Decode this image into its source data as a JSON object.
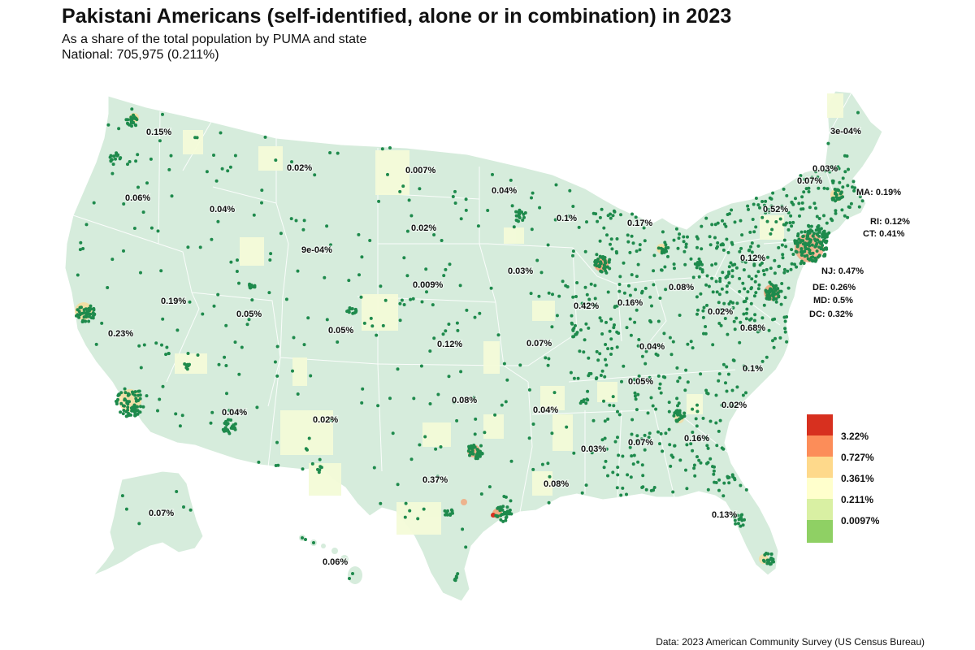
{
  "header": {
    "title": "Pakistani Americans (self-identified, alone or in combination) in 2023",
    "subtitle": "As a share of the total population by PUMA and state",
    "national": "National: 705,975 (0.211%)"
  },
  "source": "Data: 2023 American Community Survey (US Census Bureau)",
  "colors": {
    "state_fill": "#d6ecdc",
    "border": "#ffffff",
    "puma_dot": "#1e8a4c",
    "light_puma": "#f4fbd8"
  },
  "legend": {
    "items": [
      {
        "label": "3.22%",
        "color": "#d7301f"
      },
      {
        "label": "0.727%",
        "color": "#fc8d59"
      },
      {
        "label": "0.361%",
        "color": "#fed98b"
      },
      {
        "label": "0.211%",
        "color": "#ffffcc"
      },
      {
        "label": "0.0097%",
        "color": "#d9f0a3"
      },
      {
        "label": "",
        "color": "#8fd064"
      }
    ]
  },
  "states": [
    {
      "id": "WA",
      "value": "0.15%"
    },
    {
      "id": "OR",
      "value": "0.06%"
    },
    {
      "id": "ID",
      "value": "0.04%"
    },
    {
      "id": "MT",
      "value": "0.02%"
    },
    {
      "id": "ND",
      "value": "0.007%"
    },
    {
      "id": "MN",
      "value": "0.04%"
    },
    {
      "id": "WI",
      "value": "0.1%"
    },
    {
      "id": "MI",
      "value": "0.17%"
    },
    {
      "id": "SD",
      "value": "0.02%"
    },
    {
      "id": "WY",
      "value": "9e-04%"
    },
    {
      "id": "NE",
      "value": "0.009%"
    },
    {
      "id": "IA",
      "value": "0.03%"
    },
    {
      "id": "NV",
      "value": "0.19%"
    },
    {
      "id": "UT",
      "value": "0.05%"
    },
    {
      "id": "CO",
      "value": "0.05%"
    },
    {
      "id": "CA",
      "value": "0.23%"
    },
    {
      "id": "KS",
      "value": "0.12%"
    },
    {
      "id": "MO",
      "value": "0.07%"
    },
    {
      "id": "IL",
      "value": "0.42%"
    },
    {
      "id": "IN",
      "value": "0.16%"
    },
    {
      "id": "OH",
      "value": "0.08%"
    },
    {
      "id": "WV",
      "value": "0.02%"
    },
    {
      "id": "PA",
      "value": "0.12%"
    },
    {
      "id": "NY",
      "value": "0.52%"
    },
    {
      "id": "VT",
      "value": "0.07%"
    },
    {
      "id": "NH",
      "value": "0.03%"
    },
    {
      "id": "ME",
      "value": "3e-04%"
    },
    {
      "id": "VA",
      "value": "0.68%"
    },
    {
      "id": "KY",
      "value": "0.04%"
    },
    {
      "id": "NC",
      "value": "0.1%"
    },
    {
      "id": "TN",
      "value": "0.05%"
    },
    {
      "id": "SC",
      "value": "0.02%"
    },
    {
      "id": "GA",
      "value": "0.16%"
    },
    {
      "id": "AL",
      "value": "0.07%"
    },
    {
      "id": "MS",
      "value": "0.03%"
    },
    {
      "id": "AR",
      "value": "0.04%"
    },
    {
      "id": "OK",
      "value": "0.08%"
    },
    {
      "id": "LA",
      "value": "0.08%"
    },
    {
      "id": "TX",
      "value": "0.37%"
    },
    {
      "id": "NM",
      "value": "0.02%"
    },
    {
      "id": "AZ",
      "value": "0.04%"
    },
    {
      "id": "FL",
      "value": "0.13%"
    },
    {
      "id": "AK",
      "value": "0.07%"
    },
    {
      "id": "HI",
      "value": "0.06%"
    },
    {
      "id": "MA",
      "value": "MA: 0.19%"
    },
    {
      "id": "RI",
      "value": "RI: 0.12%"
    },
    {
      "id": "CT",
      "value": "CT: 0.41%"
    },
    {
      "id": "NJ",
      "value": "NJ: 0.47%"
    },
    {
      "id": "DE",
      "value": "DE: 0.26%"
    },
    {
      "id": "MD",
      "value": "MD: 0.5%"
    },
    {
      "id": "DC",
      "value": "DC: 0.32%"
    }
  ]
}
